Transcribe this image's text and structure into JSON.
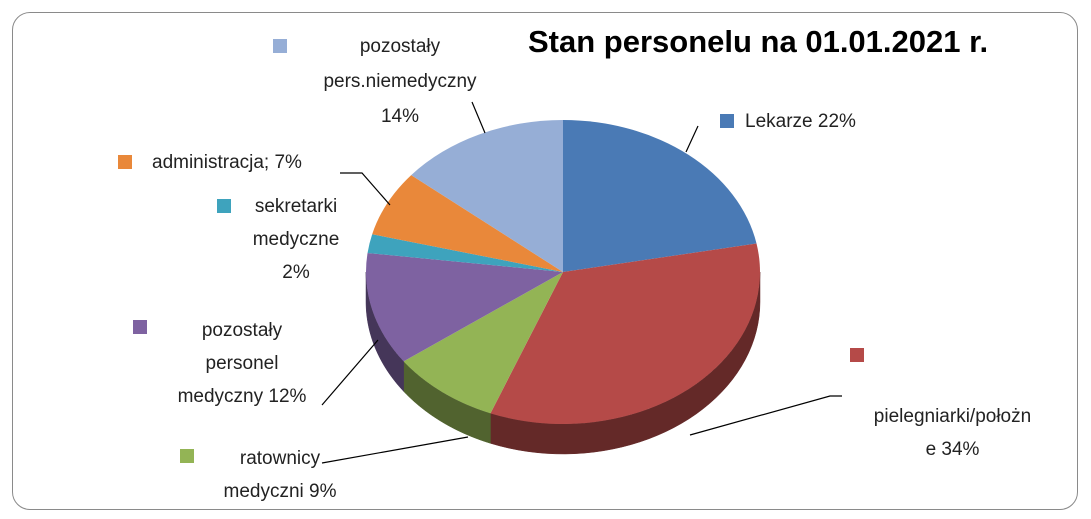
{
  "chart_data": {
    "type": "pie",
    "title": "Stan personelu na 01.01.2021 r.",
    "categories": [
      "Lekarze 22%",
      "pielegniarki/położne 34%",
      "ratownicy medyczni 9%",
      "pozostały personel medyczny 12%",
      "sekretarki medyczne 2%",
      "administracja; 7%",
      "pozostały pers.niemedyczny 14%"
    ],
    "values": [
      22,
      34,
      9,
      12,
      2,
      7,
      14
    ],
    "colors": [
      "#4a7ab5",
      "#b54a48",
      "#93b455",
      "#7e62a1",
      "#3ea3bd",
      "#e9883a",
      "#96aed6"
    ]
  }
}
